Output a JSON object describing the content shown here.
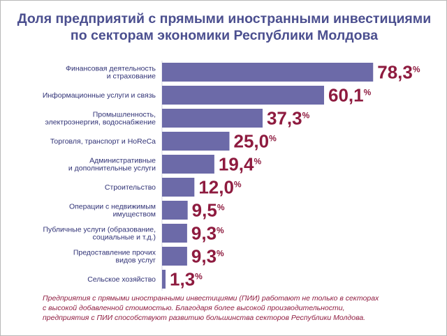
{
  "title": {
    "line1": "Доля предприятий с прямыми иностранными инвестициями",
    "line2": "по секторам экономики Республики Молдова"
  },
  "colors": {
    "title": "#4b4f8f",
    "bar": "#6c6aa8",
    "value": "#8e1b3f",
    "label": "#2f3175",
    "footnote": "#8e1b3f"
  },
  "chart_data": {
    "type": "bar",
    "orientation": "horizontal",
    "unit": "%",
    "decimal_separator": ",",
    "xlim": [
      0,
      80
    ],
    "grid": false,
    "legend": "none",
    "categories": [
      [
        "Финансовая деятельность",
        "и страхование"
      ],
      [
        "Информационные услуги и связь"
      ],
      [
        "Промышленность,",
        "электроэнергия, водоснабжение"
      ],
      [
        "Торговля, транспорт и HoReCa"
      ],
      [
        "Административные",
        "и дополнительные услуги"
      ],
      [
        "Строительство"
      ],
      [
        "Операции с недвижимым",
        "имуществом"
      ],
      [
        "Публичные услуги (образование,",
        "социальные и т.д.)"
      ],
      [
        "Предоставление прочих",
        "видов услуг"
      ],
      [
        "Сельское хозяйство"
      ]
    ],
    "values": [
      78.3,
      60.1,
      37.3,
      25.0,
      19.4,
      12.0,
      9.5,
      9.3,
      9.3,
      1.3
    ]
  },
  "footnote": {
    "line1": "Предприятия с прямыми иностранными инвестициями (ПИИ) работают не только в секторах",
    "line2": "с высокой добавленной стоимостью. Благодаря более высокой производительности,",
    "line3": "предприятия с ПИИ способствуют развитию большинства секторов Республики Молдова."
  }
}
